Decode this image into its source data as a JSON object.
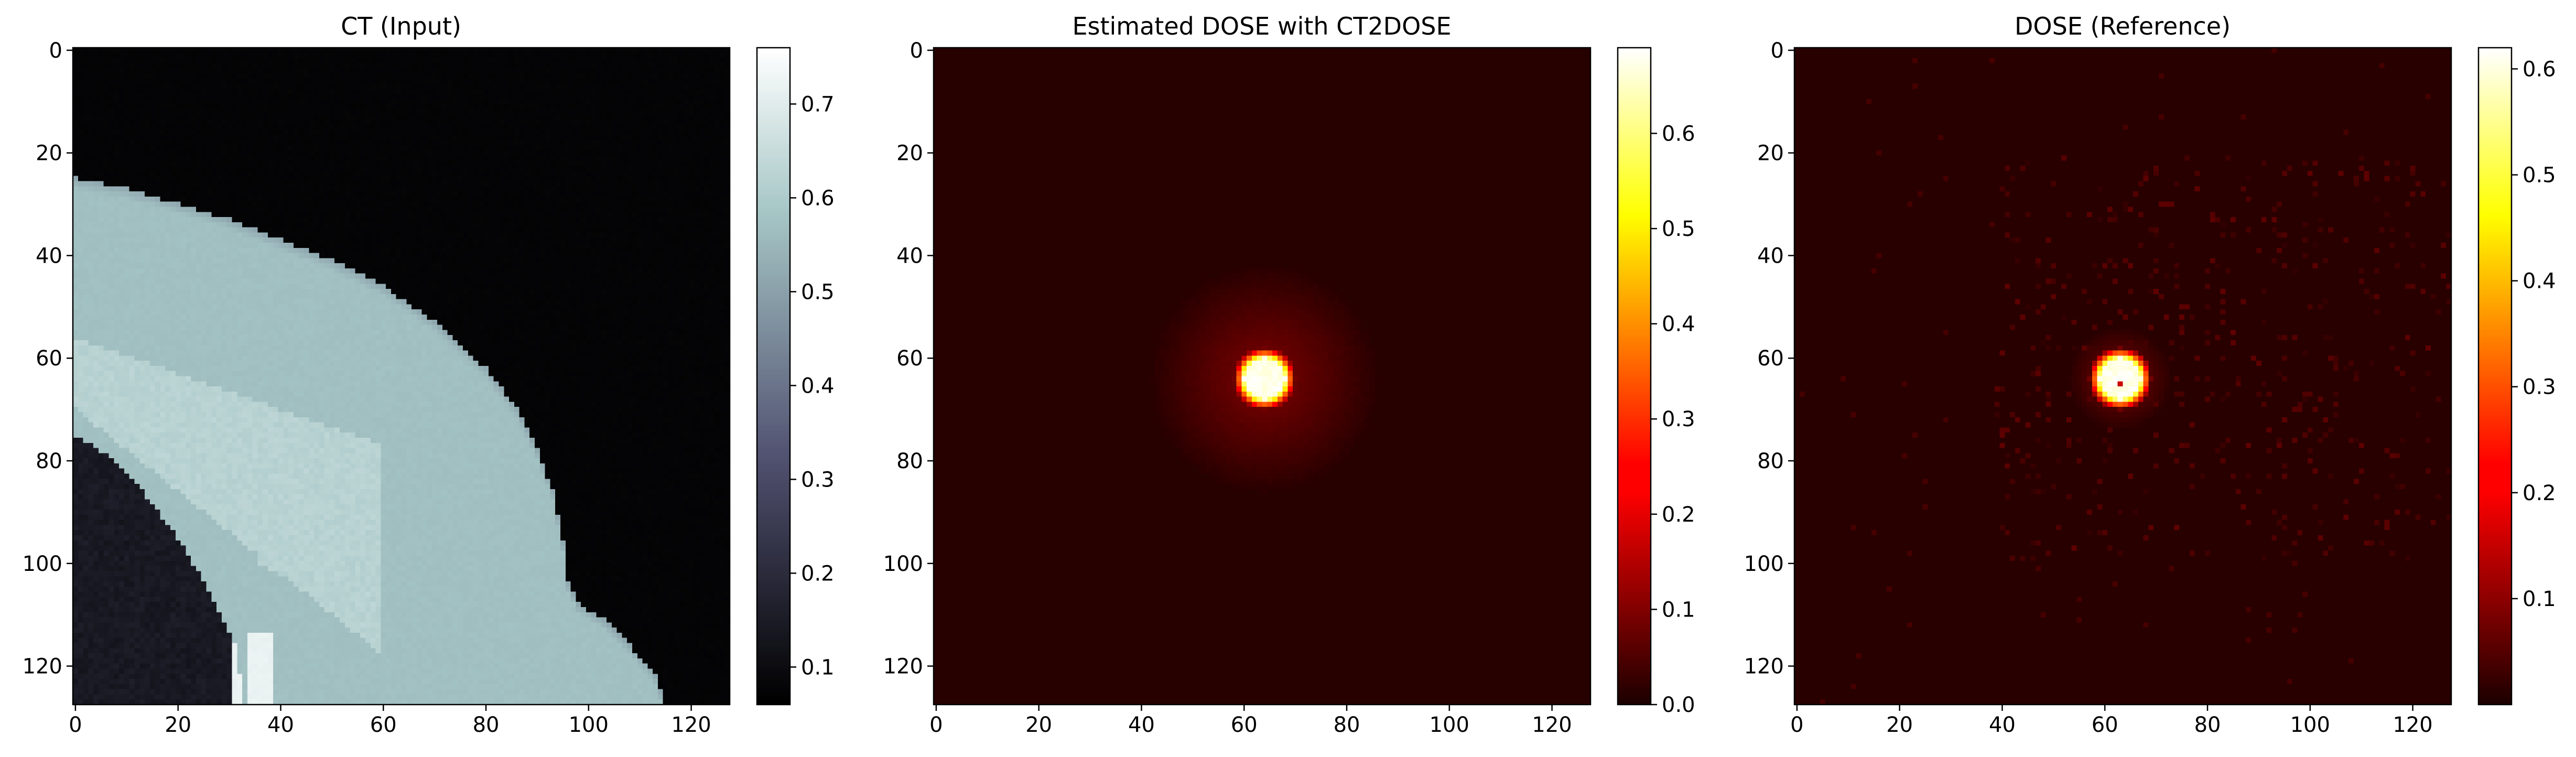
{
  "chart_data": [
    {
      "type": "heatmap",
      "title": "CT (Input)",
      "xlim": [
        0,
        128
      ],
      "ylim": [
        0,
        128
      ],
      "y_axis_inverted": true,
      "xticks": [
        0,
        20,
        40,
        60,
        80,
        100,
        120
      ],
      "yticks": [
        0,
        20,
        40,
        60,
        80,
        100,
        120
      ],
      "colormap": "bone",
      "colorbar": {
        "min": 0.06,
        "max": 0.76,
        "ticks": [
          0.1,
          0.2,
          0.3,
          0.4,
          0.5,
          0.6,
          0.7
        ]
      },
      "features": {
        "background_value": 0.07,
        "body_value": 0.57,
        "gland_value": 0.62,
        "lung_value": 0.14,
        "skin_boundary": [
          [
            0,
            25
          ],
          [
            10,
            27
          ],
          [
            20,
            30
          ],
          [
            30,
            33
          ],
          [
            40,
            37
          ],
          [
            50,
            41
          ],
          [
            60,
            46
          ],
          [
            70,
            53
          ],
          [
            80,
            62
          ],
          [
            86,
            70
          ],
          [
            90,
            78
          ],
          [
            93,
            86
          ],
          [
            95,
            96
          ],
          [
            96,
            104
          ],
          [
            98,
            108
          ],
          [
            103,
            111
          ],
          [
            108,
            116
          ],
          [
            113,
            122
          ],
          [
            115,
            128
          ]
        ],
        "lung_boundary": [
          [
            0,
            75
          ],
          [
            8,
            80
          ],
          [
            14,
            87
          ],
          [
            20,
            95
          ],
          [
            26,
            105
          ],
          [
            31,
            115
          ],
          [
            33,
            128
          ]
        ]
      }
    },
    {
      "type": "heatmap",
      "title": "Estimated DOSE with CT2DOSE",
      "xlim": [
        0,
        128
      ],
      "ylim": [
        0,
        128
      ],
      "y_axis_inverted": true,
      "xticks": [
        0,
        20,
        40,
        60,
        80,
        100,
        120
      ],
      "yticks": [
        0,
        20,
        40,
        60,
        80,
        100,
        120
      ],
      "colormap": "hot",
      "colorbar": {
        "min": 0.0,
        "max": 0.69,
        "ticks": [
          0.0,
          0.1,
          0.2,
          0.3,
          0.4,
          0.5,
          0.6
        ]
      },
      "features": {
        "background_value": 0.01,
        "hotspot_center": [
          64,
          64
        ],
        "peak_value": 0.69,
        "core_radius": 4,
        "halo_radius": 22,
        "halo_value": 0.035,
        "noise": 0.005,
        "sparse_noise": false
      }
    },
    {
      "type": "heatmap",
      "title": "DOSE (Reference)",
      "xlim": [
        0,
        128
      ],
      "ylim": [
        0,
        128
      ],
      "y_axis_inverted": true,
      "xticks": [
        0,
        20,
        40,
        60,
        80,
        100,
        120
      ],
      "yticks": [
        0,
        20,
        40,
        60,
        80,
        100,
        120
      ],
      "colormap": "hot",
      "colorbar": {
        "min": 0.0,
        "max": 0.62,
        "ticks": [
          0.1,
          0.2,
          0.3,
          0.4,
          0.5,
          0.6
        ]
      },
      "features": {
        "background_value": 0.01,
        "hotspot_center": [
          63,
          64
        ],
        "peak_value": 0.62,
        "core_radius": 4,
        "halo_radius": 10,
        "halo_value": 0.02,
        "noise": 0.003,
        "sparse_noise": true,
        "sparse_noise_level": 0.06
      }
    }
  ]
}
